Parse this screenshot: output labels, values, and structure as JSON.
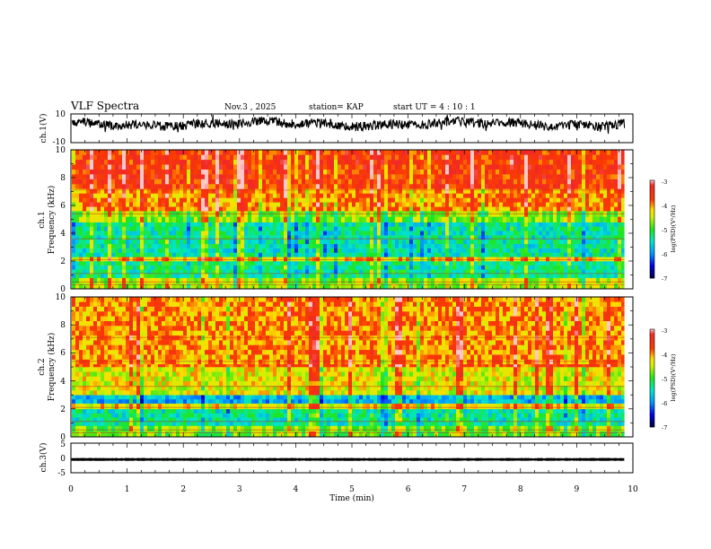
{
  "chart_data": {
    "type": "heatmap",
    "title": "VLF Spectra",
    "header": {
      "date": "Nov.3  , 2025",
      "station": "station= KAP",
      "start": "start  UT  =   4 : 10 : 1"
    },
    "xlabel": "Time  (min)",
    "x_ticks": [
      "0",
      "1",
      "2",
      "3",
      "4",
      "5",
      "6",
      "7",
      "8",
      "9",
      "10"
    ],
    "xlim": [
      0,
      10
    ],
    "data_end_min": 9.85,
    "panels": [
      {
        "id": "ch1-waveform",
        "type": "line",
        "ylabel": "ch.1(V)",
        "ylim": [
          -10,
          10
        ],
        "y_tick_labels": [
          "10",
          "-10"
        ],
        "baseline_v": 3,
        "noise_amplitude_v": 4
      },
      {
        "id": "ch1-spectrogram",
        "type": "heatmap",
        "ylabel_top": "ch.1",
        "ylabel": "Frequency  (kHz)",
        "ylim": [
          0,
          10
        ],
        "y_tick_labels": [
          "0",
          "2",
          "4",
          "6",
          "8",
          "10"
        ],
        "bands": [
          {
            "from_khz": 0,
            "to_khz": 0.8,
            "level": -4.6
          },
          {
            "from_khz": 0.8,
            "to_khz": 2.0,
            "level": -5.3
          },
          {
            "from_khz": 2.0,
            "to_khz": 2.3,
            "level": -4.2
          },
          {
            "from_khz": 2.3,
            "to_khz": 4.8,
            "level": -5.4
          },
          {
            "from_khz": 4.8,
            "to_khz": 5.6,
            "level": -4.7
          },
          {
            "from_khz": 5.6,
            "to_khz": 7.2,
            "level": -4.0
          },
          {
            "from_khz": 7.2,
            "to_khz": 10,
            "level": -3.6
          }
        ],
        "colorbar": {
          "min": -7,
          "max": -3,
          "ticks": [
            "-3",
            "-4",
            "-5",
            "-6",
            "-7"
          ],
          "label": "log(PSD)(V²/Hz)"
        }
      },
      {
        "id": "ch2-spectrogram",
        "type": "heatmap",
        "ylabel_top": "ch.2",
        "ylabel": "Frequency  (kHz)",
        "ylim": [
          0,
          10
        ],
        "y_tick_labels": [
          "0",
          "2",
          "4",
          "6",
          "8",
          "10"
        ],
        "bands": [
          {
            "from_khz": 0,
            "to_khz": 0.8,
            "level": -4.8
          },
          {
            "from_khz": 0.8,
            "to_khz": 2.0,
            "level": -5.4
          },
          {
            "from_khz": 2.0,
            "to_khz": 2.4,
            "level": -4.3
          },
          {
            "from_khz": 2.4,
            "to_khz": 3.0,
            "level": -5.8
          },
          {
            "from_khz": 3.0,
            "to_khz": 5.0,
            "level": -4.4
          },
          {
            "from_khz": 5.0,
            "to_khz": 5.2,
            "level": -3.8
          },
          {
            "from_khz": 5.2,
            "to_khz": 10,
            "level": -4.0
          }
        ],
        "colorbar": {
          "min": -7,
          "max": -3,
          "ticks": [
            "-3",
            "-4",
            "-5",
            "-6",
            "-7"
          ],
          "label": "log(PSD)(V²/Hz)"
        }
      },
      {
        "id": "ch3-waveform",
        "type": "line",
        "ylabel": "ch.3(V)",
        "ylim": [
          -5,
          5
        ],
        "y_tick_labels": [
          "5",
          "0",
          "-5"
        ],
        "baseline_v": -0.5,
        "noise_amplitude_v": 0.3
      }
    ],
    "colors": {
      "axis": "#000000",
      "trace": "#000000"
    }
  }
}
